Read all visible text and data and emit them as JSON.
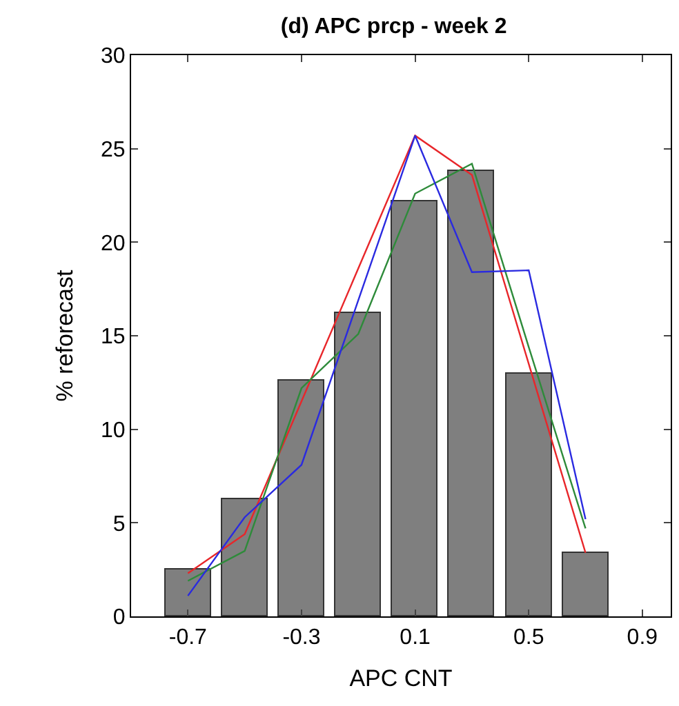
{
  "chart_data": {
    "type": "bar",
    "title": "(d) APC prcp - week 2",
    "xlabel": "APC CNT",
    "ylabel": "% reforecast",
    "x": [
      -0.7,
      -0.5,
      -0.3,
      -0.1,
      0.1,
      0.3,
      0.5,
      0.7
    ],
    "series": [
      {
        "color": "#7f7f7f",
        "values": [
          2.5,
          6.3,
          12.6,
          16.2,
          22.2,
          23.8,
          13.0,
          3.4
        ]
      },
      {
        "type": "line",
        "color": "#e8262a",
        "values": [
          2.3,
          4.4,
          11.5,
          18.6,
          25.7,
          23.6,
          13.5,
          3.4
        ]
      },
      {
        "type": "line",
        "color": "#2e8b3a",
        "values": [
          1.9,
          3.5,
          12.2,
          15.1,
          22.6,
          24.2,
          14.4,
          4.7
        ]
      },
      {
        "type": "line",
        "color": "#2a2ae0",
        "values": [
          1.1,
          5.3,
          8.1,
          16.9,
          25.7,
          18.4,
          18.5,
          5.2
        ]
      }
    ],
    "xlim": [
      -0.9,
      1.0
    ],
    "xticks": [
      -0.7,
      -0.3,
      0.1,
      0.5,
      0.9
    ],
    "ylim": [
      0,
      30
    ],
    "yticks": [
      0,
      5,
      10,
      15,
      20,
      25,
      30
    ]
  }
}
